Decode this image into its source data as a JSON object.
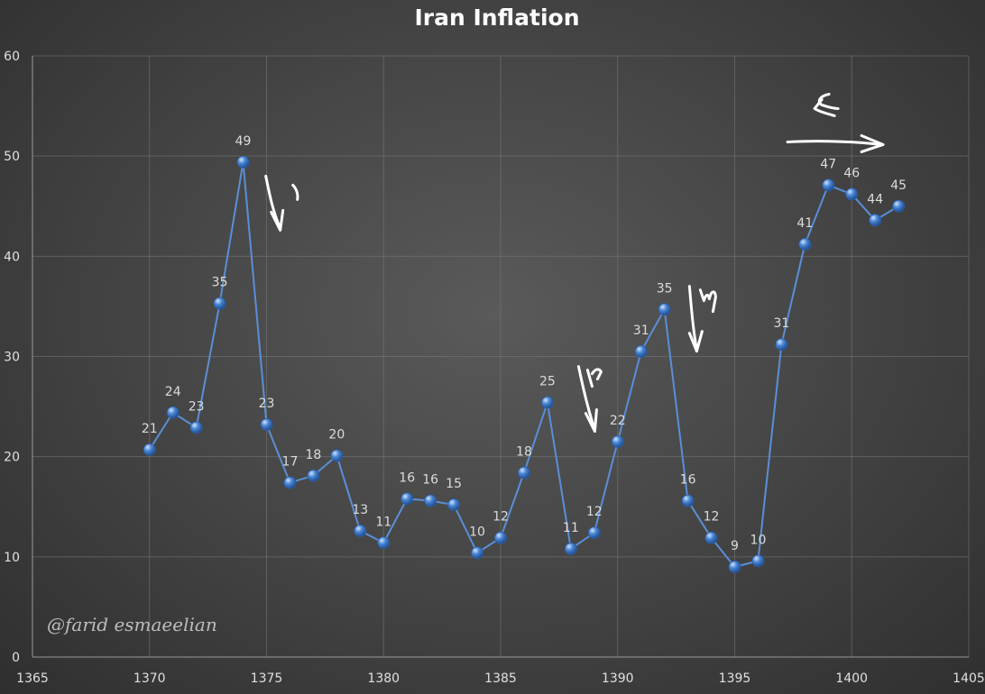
{
  "chart_data": {
    "type": "line",
    "title": "Iran Inflation",
    "xlabel": "",
    "ylabel": "",
    "xlim": [
      1365,
      1405
    ],
    "ylim": [
      0,
      60
    ],
    "x_ticks": [
      1365,
      1370,
      1375,
      1380,
      1385,
      1390,
      1395,
      1400,
      1405
    ],
    "y_ticks": [
      0,
      10,
      20,
      30,
      40,
      50,
      60
    ],
    "grid": true,
    "series": [
      {
        "name": "Inflation",
        "color": "#4a86d4",
        "x": [
          1370,
          1371,
          1372,
          1373,
          1374,
          1375,
          1376,
          1377,
          1378,
          1379,
          1380,
          1381,
          1382,
          1383,
          1384,
          1385,
          1386,
          1387,
          1388,
          1389,
          1390,
          1391,
          1392,
          1393,
          1394,
          1395,
          1396,
          1397,
          1398,
          1399,
          1400,
          1401,
          1402
        ],
        "values": [
          20.7,
          24.4,
          22.9,
          35.3,
          49.4,
          23.2,
          17.4,
          18.1,
          20.1,
          12.6,
          11.4,
          15.8,
          15.6,
          15.2,
          10.4,
          11.9,
          18.4,
          25.4,
          10.8,
          12.4,
          21.5,
          30.5,
          34.7,
          15.6,
          11.9,
          9.0,
          9.6,
          31.2,
          41.2,
          47.1,
          46.2,
          43.6,
          45.0
        ],
        "labels": [
          "21",
          "24",
          "23",
          "35",
          "49",
          "23",
          "17",
          "18",
          "20",
          "13",
          "11",
          "16",
          "16",
          "15",
          "10",
          "12",
          "18",
          "25",
          "11",
          "12",
          "22",
          "31",
          "35",
          "16",
          "12",
          "9",
          "10",
          "31",
          "41",
          "47",
          "46",
          "44",
          "45"
        ]
      }
    ],
    "annotations": [
      {
        "name": "annotation-1",
        "text": "١",
        "x": 1375.2,
        "y": 48
      },
      {
        "name": "annotation-2",
        "text": "٢",
        "x": 1388.6,
        "y": 29
      },
      {
        "name": "annotation-3",
        "text": "٣",
        "x": 1393.3,
        "y": 37
      },
      {
        "name": "annotation-4",
        "text": "۴",
        "x": 1398.8,
        "y": 56
      }
    ],
    "watermark": "@farid esmaeelian"
  }
}
